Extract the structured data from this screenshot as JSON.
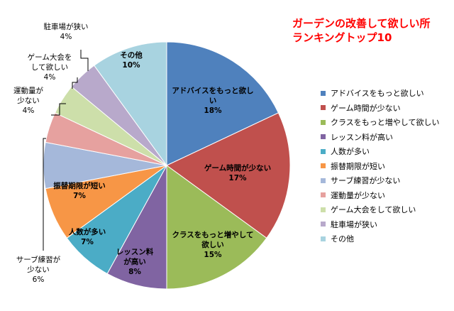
{
  "chart_data": {
    "type": "pie",
    "title": "ガーデンの改善して欲しい所",
    "subtitle": "ランキングトップ10",
    "legend_position": "right",
    "slices": [
      {
        "name": "アドバイスをもっと欲しい",
        "label": [
          "アドバイスをもっと欲し",
          "い"
        ],
        "value": 18,
        "pct_label": "18%",
        "color": "#4f81bd"
      },
      {
        "name": "ゲーム時間が少ない",
        "label": [
          "ゲーム時間が少ない"
        ],
        "value": 17,
        "pct_label": "17%",
        "color": "#c0504d"
      },
      {
        "name": "クラスをもっと増やして欲しい",
        "label": [
          "クラスをもっと増やして",
          "欲しい"
        ],
        "value": 15,
        "pct_label": "15%",
        "color": "#9bbb59"
      },
      {
        "name": "レッスン料が高い",
        "label": [
          "レッスン料",
          "が高い"
        ],
        "value": 8,
        "pct_label": "8%",
        "color": "#8064a2"
      },
      {
        "name": "人数が多い",
        "label": [
          "人数が多い"
        ],
        "value": 7,
        "pct_label": "7%",
        "color": "#4bacc6"
      },
      {
        "name": "振替期限が短い",
        "label": [
          "振替期限が短い"
        ],
        "value": 7,
        "pct_label": "7%",
        "color": "#f79646"
      },
      {
        "name": "サーブ練習が少ない",
        "label": [
          "サーブ練習が",
          "少ない"
        ],
        "value": 6,
        "pct_label": "6%",
        "color": "#a5b8da"
      },
      {
        "name": "運動量が少ない",
        "label": [
          "運動量が",
          "少ない"
        ],
        "value": 4,
        "pct_label": "4%",
        "color": "#e6a19f"
      },
      {
        "name": "ゲーム大会をして欲しい",
        "label": [
          "ゲーム大会を",
          "して欲しい"
        ],
        "value": 4,
        "pct_label": "4%",
        "color": "#cddfaa"
      },
      {
        "name": "駐車場が狭い",
        "label": [
          "駐車場が狭い"
        ],
        "value": 4,
        "pct_label": "4%",
        "color": "#b8a9cb"
      },
      {
        "name": "その他",
        "label": [
          "その他"
        ],
        "value": 10,
        "pct_label": "10%",
        "color": "#a8d3e0"
      }
    ]
  }
}
